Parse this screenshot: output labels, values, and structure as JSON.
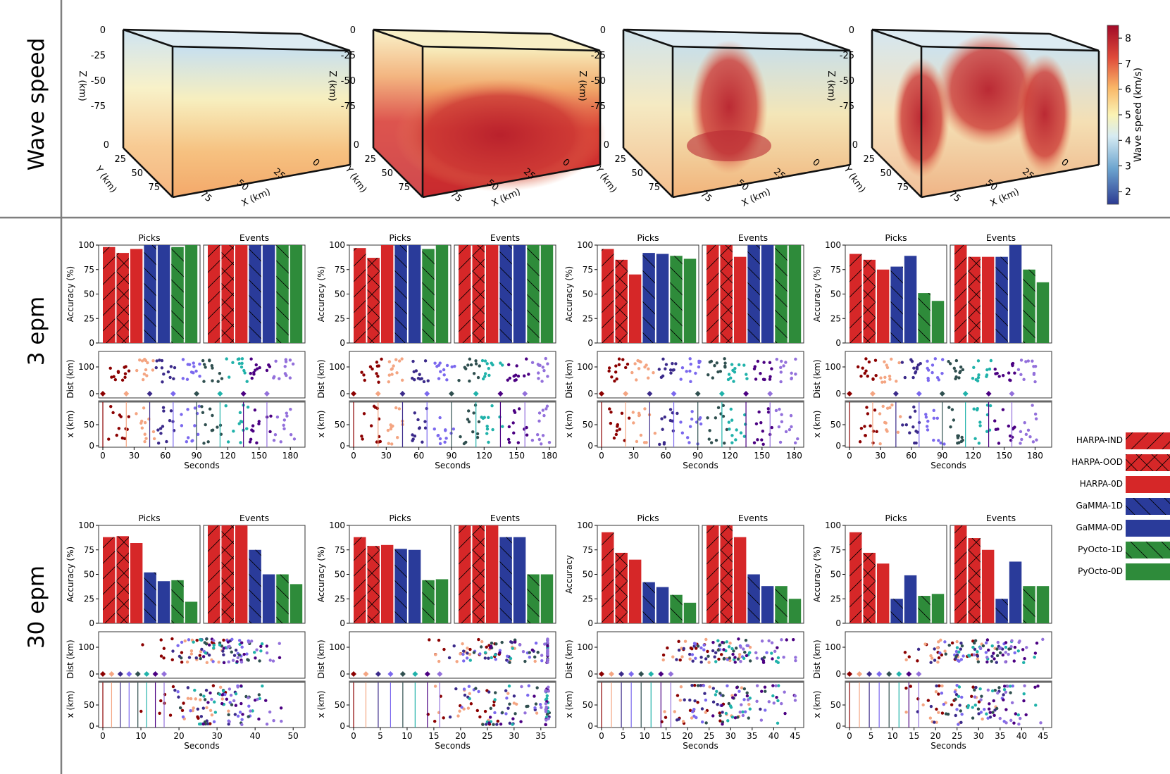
{
  "rows": {
    "wave_speed": "Wave speed",
    "epm3": "3 epm",
    "epm30": "30 epm"
  },
  "labels": {
    "picks": "Picks",
    "events": "Events",
    "accuracy_pct": "Accuracy (%)",
    "accuracy": "Accuracy",
    "dist": "Dist (km)",
    "xkm": "x (km)",
    "seconds": "Seconds"
  },
  "cube": {
    "z_label": "Z (km)",
    "y_label": "Y (km)",
    "x_label": "X (km)",
    "z_ticks": [
      "0",
      "-25",
      "-50",
      "-75"
    ],
    "y_ticks": [
      "0",
      "25",
      "50",
      "75"
    ],
    "x_ticks": [
      "75",
      "50",
      "25",
      "0"
    ]
  },
  "colorbar": {
    "label": "Wave speed (km/s)",
    "ticks": [
      "2",
      "3",
      "4",
      "5",
      "6",
      "7",
      "8"
    ]
  },
  "legend": [
    {
      "name": "HARPA-IND",
      "color": "#d62728",
      "hatch": "/"
    },
    {
      "name": "HARPA-OOD",
      "color": "#d62728",
      "hatch": "x"
    },
    {
      "name": "HARPA-0D",
      "color": "#d62728",
      "hatch": ""
    },
    {
      "name": "GaMMA-1D",
      "color": "#2a3b9a",
      "hatch": "\\"
    },
    {
      "name": "GaMMA-0D",
      "color": "#2a3b9a",
      "hatch": ""
    },
    {
      "name": "PyOcto-1D",
      "color": "#2e8b3a",
      "hatch": "\\"
    },
    {
      "name": "PyOcto-0D",
      "color": "#2e8b3a",
      "hatch": ""
    }
  ],
  "event_colors": [
    "#8b0000",
    "#f4a582",
    "#3b2a8a",
    "#7b68ee",
    "#2f4f4f",
    "#20b2aa",
    "#4b0082",
    "#9370db"
  ],
  "chart_data": [
    {
      "type": "bar",
      "row": "3 epm",
      "col": 1,
      "title": "Picks",
      "ylabel": "Accuracy (%)",
      "ylim": [
        0,
        100
      ],
      "categories": [
        "HARPA-IND",
        "HARPA-OOD",
        "HARPA-0D",
        "GaMMA-1D",
        "GaMMA-0D",
        "PyOcto-1D",
        "PyOcto-0D"
      ],
      "picks": [
        98,
        92,
        96,
        100,
        100,
        98,
        100
      ],
      "events": [
        100,
        100,
        100,
        100,
        100,
        100,
        100
      ],
      "xticks": [
        "0",
        "30",
        "60",
        "90",
        "120",
        "150",
        "180"
      ],
      "xmax": 190
    },
    {
      "type": "bar",
      "row": "3 epm",
      "col": 2,
      "title": "Picks",
      "ylabel": "Accuracy (%)",
      "ylim": [
        0,
        100
      ],
      "picks": [
        97,
        87,
        100,
        100,
        100,
        96,
        100
      ],
      "events": [
        100,
        100,
        100,
        100,
        100,
        100,
        100
      ],
      "xticks": [
        "0",
        "30",
        "60",
        "90",
        "120",
        "150",
        "180"
      ],
      "xmax": 182
    },
    {
      "type": "bar",
      "row": "3 epm",
      "col": 3,
      "title": "Picks",
      "ylabel": "Accuracy (%)",
      "ylim": [
        0,
        100
      ],
      "picks": [
        96,
        85,
        70,
        92,
        91,
        89,
        86
      ],
      "events": [
        100,
        100,
        88,
        100,
        100,
        100,
        100
      ],
      "xticks": [
        "0",
        "30",
        "60",
        "90",
        "120",
        "150",
        "180"
      ],
      "xmax": 185
    },
    {
      "type": "bar",
      "row": "3 epm",
      "col": 4,
      "title": "Picks",
      "ylabel": "Accuracy (%)",
      "ylim": [
        0,
        100
      ],
      "picks": [
        91,
        85,
        75,
        78,
        89,
        51,
        43
      ],
      "events": [
        100,
        88,
        88,
        88,
        100,
        75,
        62
      ],
      "xticks": [
        "0",
        "30",
        "60",
        "90",
        "120",
        "150",
        "180"
      ],
      "xmax": 192
    },
    {
      "type": "bar",
      "row": "30 epm",
      "col": 1,
      "title": "Picks",
      "ylabel": "Accuracy (%)",
      "ylim": [
        0,
        100
      ],
      "picks": [
        88,
        89,
        82,
        52,
        43,
        44,
        22
      ],
      "events": [
        100,
        100,
        100,
        75,
        50,
        50,
        40
      ],
      "xticks": [
        "0",
        "10",
        "20",
        "30",
        "40",
        "50"
      ],
      "xmax": 52
    },
    {
      "type": "bar",
      "row": "30 epm",
      "col": 2,
      "title": "Picks",
      "ylabel": "Accuracy (%)",
      "ylim": [
        0,
        100
      ],
      "picks": [
        88,
        79,
        80,
        76,
        75,
        44,
        45
      ],
      "events": [
        100,
        100,
        100,
        88,
        88,
        50,
        50
      ],
      "xticks": [
        "0",
        "5",
        "10",
        "15",
        "20",
        "25",
        "30",
        "35"
      ],
      "xmax": 37
    },
    {
      "type": "bar",
      "row": "30 epm",
      "col": 3,
      "title": "Picks",
      "ylabel": "Accuracy",
      "ylim": [
        0,
        100
      ],
      "picks": [
        93,
        72,
        65,
        42,
        37,
        29,
        21
      ],
      "events": [
        100,
        100,
        88,
        50,
        38,
        38,
        25
      ],
      "xticks": [
        "0",
        "5",
        "10",
        "15",
        "20",
        "25",
        "30",
        "35",
        "40",
        "45"
      ],
      "xmax": 46
    },
    {
      "type": "bar",
      "row": "30 epm",
      "col": 4,
      "title": "Picks",
      "ylabel": "Accuracy (%)",
      "ylim": [
        0,
        100
      ],
      "picks": [
        93,
        72,
        61,
        25,
        49,
        28,
        30
      ],
      "events": [
        100,
        87,
        75,
        25,
        63,
        38,
        38
      ],
      "xticks": [
        "0",
        "5",
        "10",
        "15",
        "20",
        "25",
        "30",
        "35",
        "40",
        "45"
      ],
      "xmax": 46
    }
  ]
}
